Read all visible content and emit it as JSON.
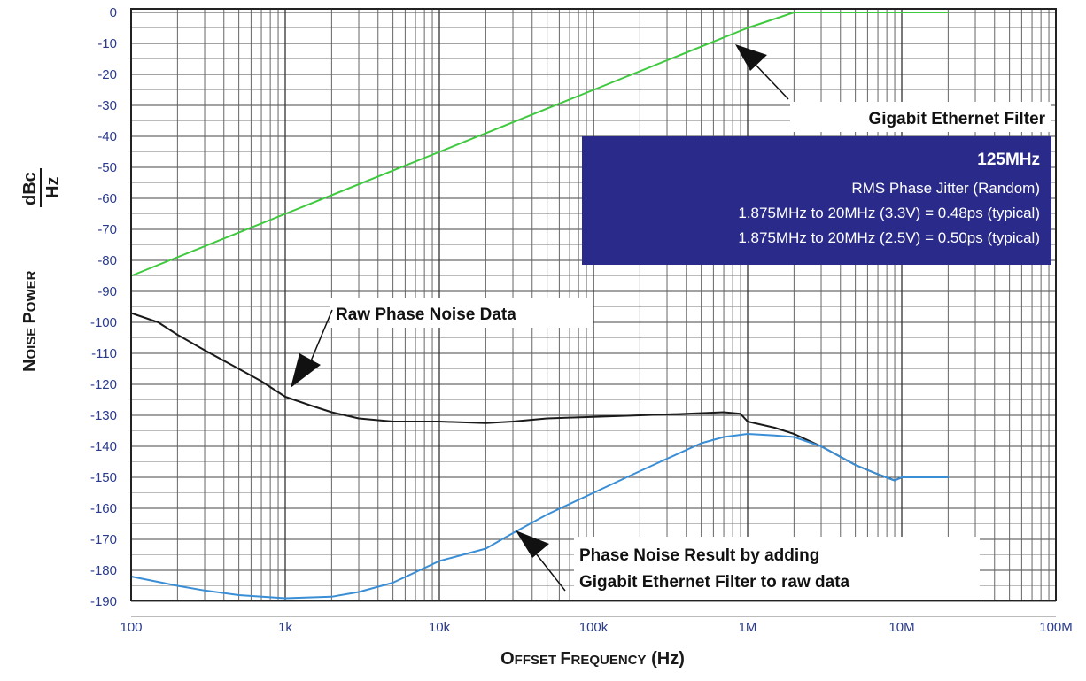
{
  "chart_data": {
    "type": "line",
    "x_scale": "log",
    "xlim": [
      100,
      100000000
    ],
    "ylim": [
      -193,
      0
    ],
    "grid": true,
    "x_ticks": [
      {
        "value": 100,
        "label": "100"
      },
      {
        "value": 1000,
        "label": "1k"
      },
      {
        "value": 10000,
        "label": "10k"
      },
      {
        "value": 100000,
        "label": "100k"
      },
      {
        "value": 1000000,
        "label": "1M"
      },
      {
        "value": 10000000,
        "label": "10M"
      },
      {
        "value": 100000000,
        "label": "100M"
      }
    ],
    "y_ticks": [
      0,
      -10,
      -20,
      -30,
      -40,
      -50,
      -60,
      -70,
      -80,
      -90,
      -100,
      -110,
      -120,
      -130,
      -140,
      -150,
      -160,
      -170,
      -180,
      -190
    ],
    "xlabel": {
      "first": "O",
      "rest1": "FFSET ",
      "first2": "F",
      "rest2": "REQUENCY",
      "tail": " (Hz)"
    },
    "ylabel": {
      "first": "N",
      "rest1": "OISE ",
      "first2": "P",
      "rest2": "OWER",
      "num": "dBc",
      "den": "Hz"
    },
    "series": [
      {
        "key": "filter",
        "color": "#3ec93e",
        "points": [
          [
            100,
            -85
          ],
          [
            1000,
            -65
          ],
          [
            10000,
            -45
          ],
          [
            100000,
            -25
          ],
          [
            1000000,
            -5
          ],
          [
            2000000,
            0
          ],
          [
            20000000,
            0
          ]
        ]
      },
      {
        "key": "raw",
        "color": "#1a1a1a",
        "points": [
          [
            100,
            -97
          ],
          [
            150,
            -100
          ],
          [
            200,
            -104
          ],
          [
            300,
            -109
          ],
          [
            500,
            -115
          ],
          [
            700,
            -119
          ],
          [
            1000,
            -124
          ],
          [
            1500,
            -127
          ],
          [
            2000,
            -129
          ],
          [
            3000,
            -131
          ],
          [
            5000,
            -132
          ],
          [
            10000,
            -132
          ],
          [
            20000,
            -132.5
          ],
          [
            30000,
            -132
          ],
          [
            50000,
            -131
          ],
          [
            100000,
            -130.5
          ],
          [
            200000,
            -130
          ],
          [
            400000,
            -129.5
          ],
          [
            700000,
            -129
          ],
          [
            900000,
            -129.5
          ],
          [
            1000000,
            -132
          ],
          [
            1500000,
            -134
          ],
          [
            2000000,
            -136
          ],
          [
            3000000,
            -140
          ],
          [
            5000000,
            -146
          ],
          [
            7000000,
            -149
          ],
          [
            9000000,
            -151
          ],
          [
            10000000,
            -150
          ],
          [
            20000000,
            -150
          ]
        ]
      },
      {
        "key": "result",
        "color": "#3a8ed6",
        "points": [
          [
            100,
            -182
          ],
          [
            200,
            -185
          ],
          [
            300,
            -186.5
          ],
          [
            500,
            -188
          ],
          [
            1000,
            -189
          ],
          [
            2000,
            -188.5
          ],
          [
            3000,
            -187
          ],
          [
            5000,
            -184
          ],
          [
            10000,
            -177
          ],
          [
            20000,
            -173
          ],
          [
            30000,
            -168
          ],
          [
            50000,
            -162
          ],
          [
            100000,
            -155
          ],
          [
            200000,
            -148
          ],
          [
            300000,
            -144
          ],
          [
            500000,
            -139
          ],
          [
            700000,
            -137
          ],
          [
            1000000,
            -136
          ],
          [
            1500000,
            -136.5
          ],
          [
            2000000,
            -137
          ],
          [
            3000000,
            -140
          ],
          [
            5000000,
            -146
          ],
          [
            7000000,
            -149
          ],
          [
            9000000,
            -151
          ],
          [
            10000000,
            -150
          ],
          [
            20000000,
            -150
          ]
        ]
      }
    ],
    "annotations": [
      {
        "key": "filter",
        "text": "Gigabit Ethernet Filter"
      },
      {
        "key": "raw",
        "text": "Raw Phase Noise Data"
      },
      {
        "key": "result_line1",
        "text": "Phase Noise Result by adding"
      },
      {
        "key": "result_line2",
        "text": "Gigabit Ethernet Filter to raw data"
      }
    ],
    "info_box": {
      "color": "#2a2a8a",
      "title": "125MHz",
      "line1": "RMS Phase Jitter (Random)",
      "line2": "1.875MHz to 20MHz (3.3V) = 0.48ps (typical)",
      "line3": "1.875MHz to 20MHz (2.5V) = 0.50ps (typical)"
    }
  }
}
